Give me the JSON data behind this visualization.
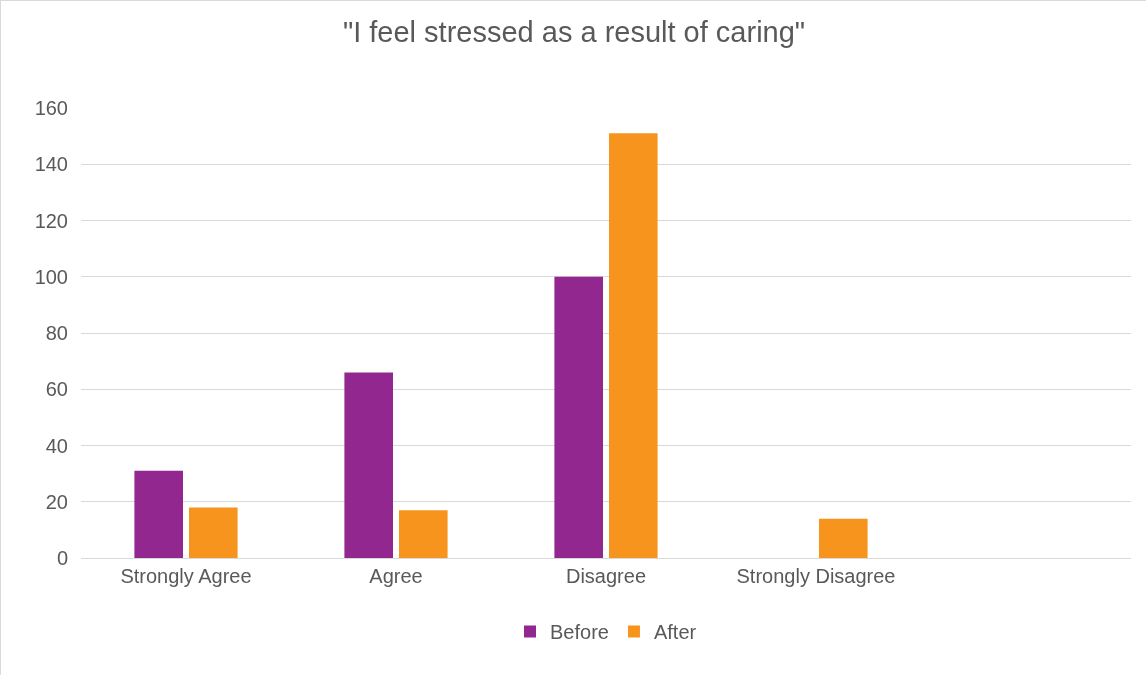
{
  "chart_data": {
    "type": "bar",
    "title": "\"I feel stressed as a result of caring\"",
    "categories": [
      "Strongly Agree",
      "Agree",
      "Disagree",
      "Strongly Disagree",
      null
    ],
    "series": [
      {
        "name": "Before",
        "color": "#92278f",
        "values": [
          31,
          66,
          100,
          null,
          null
        ]
      },
      {
        "name": "After",
        "color": "#f7941d",
        "values": [
          18,
          17,
          151,
          14,
          null
        ]
      }
    ],
    "ylim": [
      0,
      160
    ],
    "yticks": [
      0,
      20,
      40,
      60,
      80,
      100,
      120,
      140,
      160
    ],
    "grid": "y",
    "legend": "bottom"
  }
}
